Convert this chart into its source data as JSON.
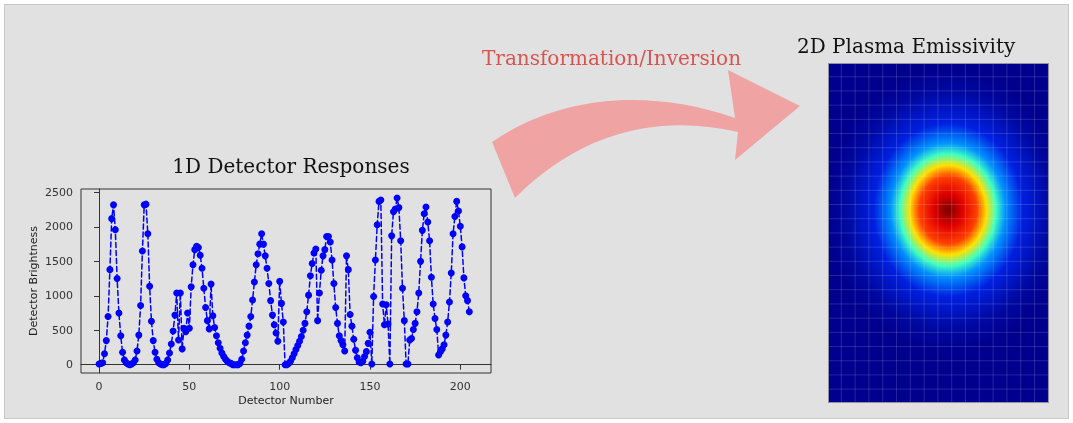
{
  "chart_data": {
    "type": "line",
    "title": "1D Detector Responses",
    "xlabel": "Detector Number",
    "ylabel": "Detector Brightness",
    "annotations": [
      "Transformation/Inversion",
      "2D Plasma Emissivity"
    ],
    "x": [
      0,
      1,
      2,
      3,
      4,
      5,
      6,
      7,
      8,
      9,
      10,
      11,
      12,
      13,
      14,
      15,
      16,
      17,
      18,
      19,
      20,
      21,
      22,
      23,
      24,
      25,
      26,
      27,
      28,
      29,
      30,
      31,
      32,
      33,
      34,
      35,
      36,
      37,
      38,
      39,
      40,
      41,
      42,
      43,
      44,
      45,
      46,
      47,
      48,
      49,
      50,
      51,
      52,
      53,
      54,
      55,
      56,
      57,
      58,
      59,
      60,
      61,
      62,
      63,
      64,
      65,
      66,
      67,
      68,
      69,
      70,
      71,
      72,
      73,
      74,
      75,
      76,
      77,
      78,
      79,
      80,
      81,
      82,
      83,
      84,
      85,
      86,
      87,
      88,
      89,
      90,
      91,
      92,
      93,
      94,
      95,
      96,
      97,
      98,
      99,
      100,
      101,
      102,
      103,
      104,
      105,
      106,
      107,
      108,
      109,
      110,
      111,
      112,
      113,
      114,
      115,
      116,
      117,
      118,
      119,
      120,
      121,
      122,
      123,
      124,
      125,
      126,
      127,
      128,
      129,
      130,
      131,
      132,
      133,
      134,
      135,
      136,
      137,
      138,
      139,
      140,
      141,
      142,
      143,
      144,
      145,
      146,
      147,
      148,
      149,
      150,
      151,
      152,
      153,
      154,
      155,
      156,
      157,
      158,
      159,
      160,
      161,
      162,
      163,
      164,
      165,
      166,
      167,
      168,
      169,
      170,
      171,
      172,
      173,
      174,
      175,
      176,
      177,
      178,
      179,
      180,
      181,
      182,
      183,
      184,
      185,
      186,
      187,
      188,
      189,
      190,
      191,
      192,
      193,
      194,
      195,
      196,
      197,
      198,
      199,
      200,
      201,
      202,
      203,
      204,
      205
    ],
    "series": [
      {
        "color": "#0000ff",
        "values": [
          10,
          20,
          30,
          160,
          350,
          700,
          1380,
          2120,
          2320,
          1960,
          1250,
          750,
          420,
          180,
          70,
          30,
          10,
          0,
          10,
          30,
          70,
          200,
          430,
          860,
          1650,
          2320,
          2330,
          1900,
          1140,
          630,
          350,
          180,
          80,
          30,
          10,
          0,
          0,
          20,
          70,
          170,
          300,
          490,
          720,
          1040,
          360,
          1040,
          230,
          530,
          480,
          750,
          530,
          1130,
          1450,
          1670,
          1720,
          1700,
          1590,
          1400,
          1110,
          830,
          640,
          520,
          1170,
          710,
          540,
          420,
          320,
          240,
          170,
          120,
          80,
          50,
          30,
          20,
          0,
          0,
          0,
          0,
          20,
          80,
          200,
          320,
          430,
          560,
          700,
          940,
          1200,
          1450,
          1610,
          1750,
          1900,
          1750,
          1580,
          1400,
          1180,
          930,
          720,
          580,
          460,
          340,
          1210,
          890,
          620,
          0,
          0,
          20,
          50,
          100,
          160,
          220,
          280,
          340,
          410,
          500,
          600,
          770,
          1010,
          1290,
          1470,
          1620,
          1680,
          640,
          1040,
          1370,
          1580,
          1670,
          1860,
          1860,
          1780,
          1520,
          1180,
          830,
          600,
          420,
          350,
          290,
          200,
          1580,
          1380,
          730,
          560,
          370,
          210,
          100,
          40,
          30,
          50,
          120,
          190,
          310,
          470,
          10,
          990,
          1520,
          2030,
          2370,
          2390,
          880,
          580,
          870,
          590,
          10,
          1870,
          2220,
          2260,
          2420,
          2280,
          1800,
          1110,
          640,
          10,
          10,
          360,
          380,
          510,
          600,
          770,
          1040,
          1500,
          1950,
          2190,
          2290,
          2070,
          1800,
          1270,
          880,
          670,
          510,
          140,
          190,
          230,
          290,
          430,
          620,
          910,
          1330,
          1900,
          2150,
          2370,
          2230,
          2010,
          1710,
          1260,
          1000,
          930,
          770
        ]
      }
    ],
    "xlim": [
      -10,
      217
    ],
    "xticks": [
      0,
      50,
      100,
      150,
      200
    ],
    "ylim": [
      -120,
      2550
    ],
    "yticks": [
      0,
      500,
      1000,
      1500,
      2000,
      2500
    ],
    "marker": "circle",
    "line_style": "dashed"
  }
}
